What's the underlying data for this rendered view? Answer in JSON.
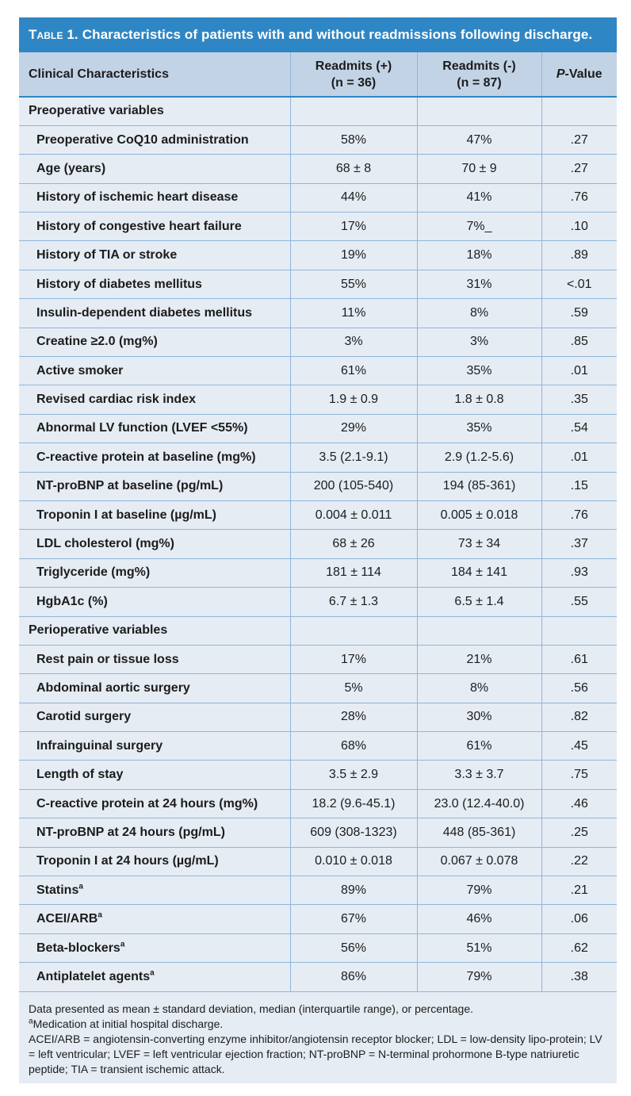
{
  "title": {
    "lead": "Table 1.",
    "text": "Characteristics of patients with and without readmissions following discharge."
  },
  "columns": {
    "characteristic": "Clinical Characteristics",
    "readmits_pos_line1": "Readmits (+)",
    "readmits_pos_line2": "(n = 36)",
    "readmits_neg_line1": "Readmits (-)",
    "readmits_neg_line2": "(n = 87)",
    "p_italic": "P",
    "p_rest": "-Value"
  },
  "sections": [
    {
      "label": "Preoperative variables",
      "rows": [
        {
          "label": "Preoperative CoQ10 administration",
          "sup": "",
          "pos": "58%",
          "neg": "47%",
          "p": ".27"
        },
        {
          "label": "Age (years)",
          "sup": "",
          "pos": "68 ± 8",
          "neg": "70 ± 9",
          "p": ".27"
        },
        {
          "label": "History of ischemic heart disease",
          "sup": "",
          "pos": "44%",
          "neg": "41%",
          "p": ".76"
        },
        {
          "label": "History of congestive heart failure",
          "sup": "",
          "pos": "17%",
          "neg": "7%_",
          "p": ".10"
        },
        {
          "label": "History of TIA or stroke",
          "sup": "",
          "pos": "19%",
          "neg": "18%",
          "p": ".89"
        },
        {
          "label": "History of diabetes mellitus",
          "sup": "",
          "pos": "55%",
          "neg": "31%",
          "p": "<.01"
        },
        {
          "label": "Insulin-dependent diabetes mellitus",
          "sup": "",
          "pos": "11%",
          "neg": "8%",
          "p": ".59"
        },
        {
          "label": "Creatine ≥2.0 (mg%)",
          "sup": "",
          "pos": "3%",
          "neg": "3%",
          "p": ".85"
        },
        {
          "label": "Active smoker",
          "sup": "",
          "pos": "61%",
          "neg": "35%",
          "p": ".01"
        },
        {
          "label": "Revised cardiac risk index",
          "sup": "",
          "pos": "1.9 ± 0.9",
          "neg": "1.8 ± 0.8",
          "p": ".35"
        },
        {
          "label": "Abnormal LV function (LVEF <55%)",
          "sup": "",
          "pos": "29%",
          "neg": "35%",
          "p": ".54"
        },
        {
          "label": "C-reactive protein at baseline (mg%)",
          "sup": "",
          "pos": "3.5 (2.1-9.1)",
          "neg": "2.9 (1.2-5.6)",
          "p": ".01"
        },
        {
          "label": "NT-proBNP at baseline (pg/mL)",
          "sup": "",
          "pos": "200 (105-540)",
          "neg": "194 (85-361)",
          "p": ".15"
        },
        {
          "label": "Troponin I at baseline (µg/mL)",
          "sup": "",
          "pos": "0.004 ± 0.011",
          "neg": "0.005 ± 0.018",
          "p": ".76"
        },
        {
          "label": "LDL cholesterol (mg%)",
          "sup": "",
          "pos": "68 ± 26",
          "neg": "73 ± 34",
          "p": ".37"
        },
        {
          "label": "Triglyceride (mg%)",
          "sup": "",
          "pos": "181 ± 114",
          "neg": "184 ± 141",
          "p": ".93"
        },
        {
          "label": "HgbA1c (%)",
          "sup": "",
          "pos": "6.7 ± 1.3",
          "neg": "6.5 ± 1.4",
          "p": ".55"
        }
      ]
    },
    {
      "label": "Perioperative variables",
      "rows": [
        {
          "label": "Rest pain or tissue loss",
          "sup": "",
          "pos": "17%",
          "neg": "21%",
          "p": ".61"
        },
        {
          "label": "Abdominal aortic surgery",
          "sup": "",
          "pos": "5%",
          "neg": "8%",
          "p": ".56"
        },
        {
          "label": "Carotid surgery",
          "sup": "",
          "pos": "28%",
          "neg": "30%",
          "p": ".82"
        },
        {
          "label": "Infrainguinal surgery",
          "sup": "",
          "pos": "68%",
          "neg": "61%",
          "p": ".45"
        },
        {
          "label": "Length of stay",
          "sup": "",
          "pos": "3.5 ± 2.9",
          "neg": "3.3 ± 3.7",
          "p": ".75"
        },
        {
          "label": "C-reactive protein at 24 hours (mg%)",
          "sup": "",
          "pos": "18.2 (9.6-45.1)",
          "neg": "23.0 (12.4-40.0)",
          "p": ".46"
        },
        {
          "label": "NT-proBNP at 24 hours (pg/mL)",
          "sup": "",
          "pos": "609 (308-1323)",
          "neg": "448 (85-361)",
          "p": ".25"
        },
        {
          "label": "Troponin I at 24 hours (µg/mL)",
          "sup": "",
          "pos": "0.010 ± 0.018",
          "neg": "0.067 ± 0.078",
          "p": ".22"
        },
        {
          "label": "Statins",
          "sup": "a",
          "pos": "89%",
          "neg": "79%",
          "p": ".21"
        },
        {
          "label": "ACEI/ARB",
          "sup": "a",
          "pos": "67%",
          "neg": "46%",
          "p": ".06"
        },
        {
          "label": "Beta-blockers",
          "sup": "a",
          "pos": "56%",
          "neg": "51%",
          "p": ".62"
        },
        {
          "label": "Antiplatelet agents",
          "sup": "a",
          "pos": "86%",
          "neg": "79%",
          "p": ".38"
        }
      ]
    }
  ],
  "footnotes": {
    "data_note": "Data presented as mean ± standard deviation, median (interquartile range), or percentage.",
    "a_marker": "a",
    "a_text": "Medication at initial hospital discharge.",
    "abbreviations": "ACEI/ARB = angiotensin-converting enzyme inhibitor/angiotensin receptor blocker; LDL = low-density lipo-protein; LV = left ventricular; LVEF = left ventricular ejection fraction; NT-proBNP = N-terminal prohormone B-type natriuretic peptide; TIA = transient ischemic attack."
  },
  "colors": {
    "title_bar": "#2f86c4",
    "header_bg": "#c3d3e6",
    "body_bg": "#e6ecf4",
    "rule": "#8fb6d9"
  }
}
